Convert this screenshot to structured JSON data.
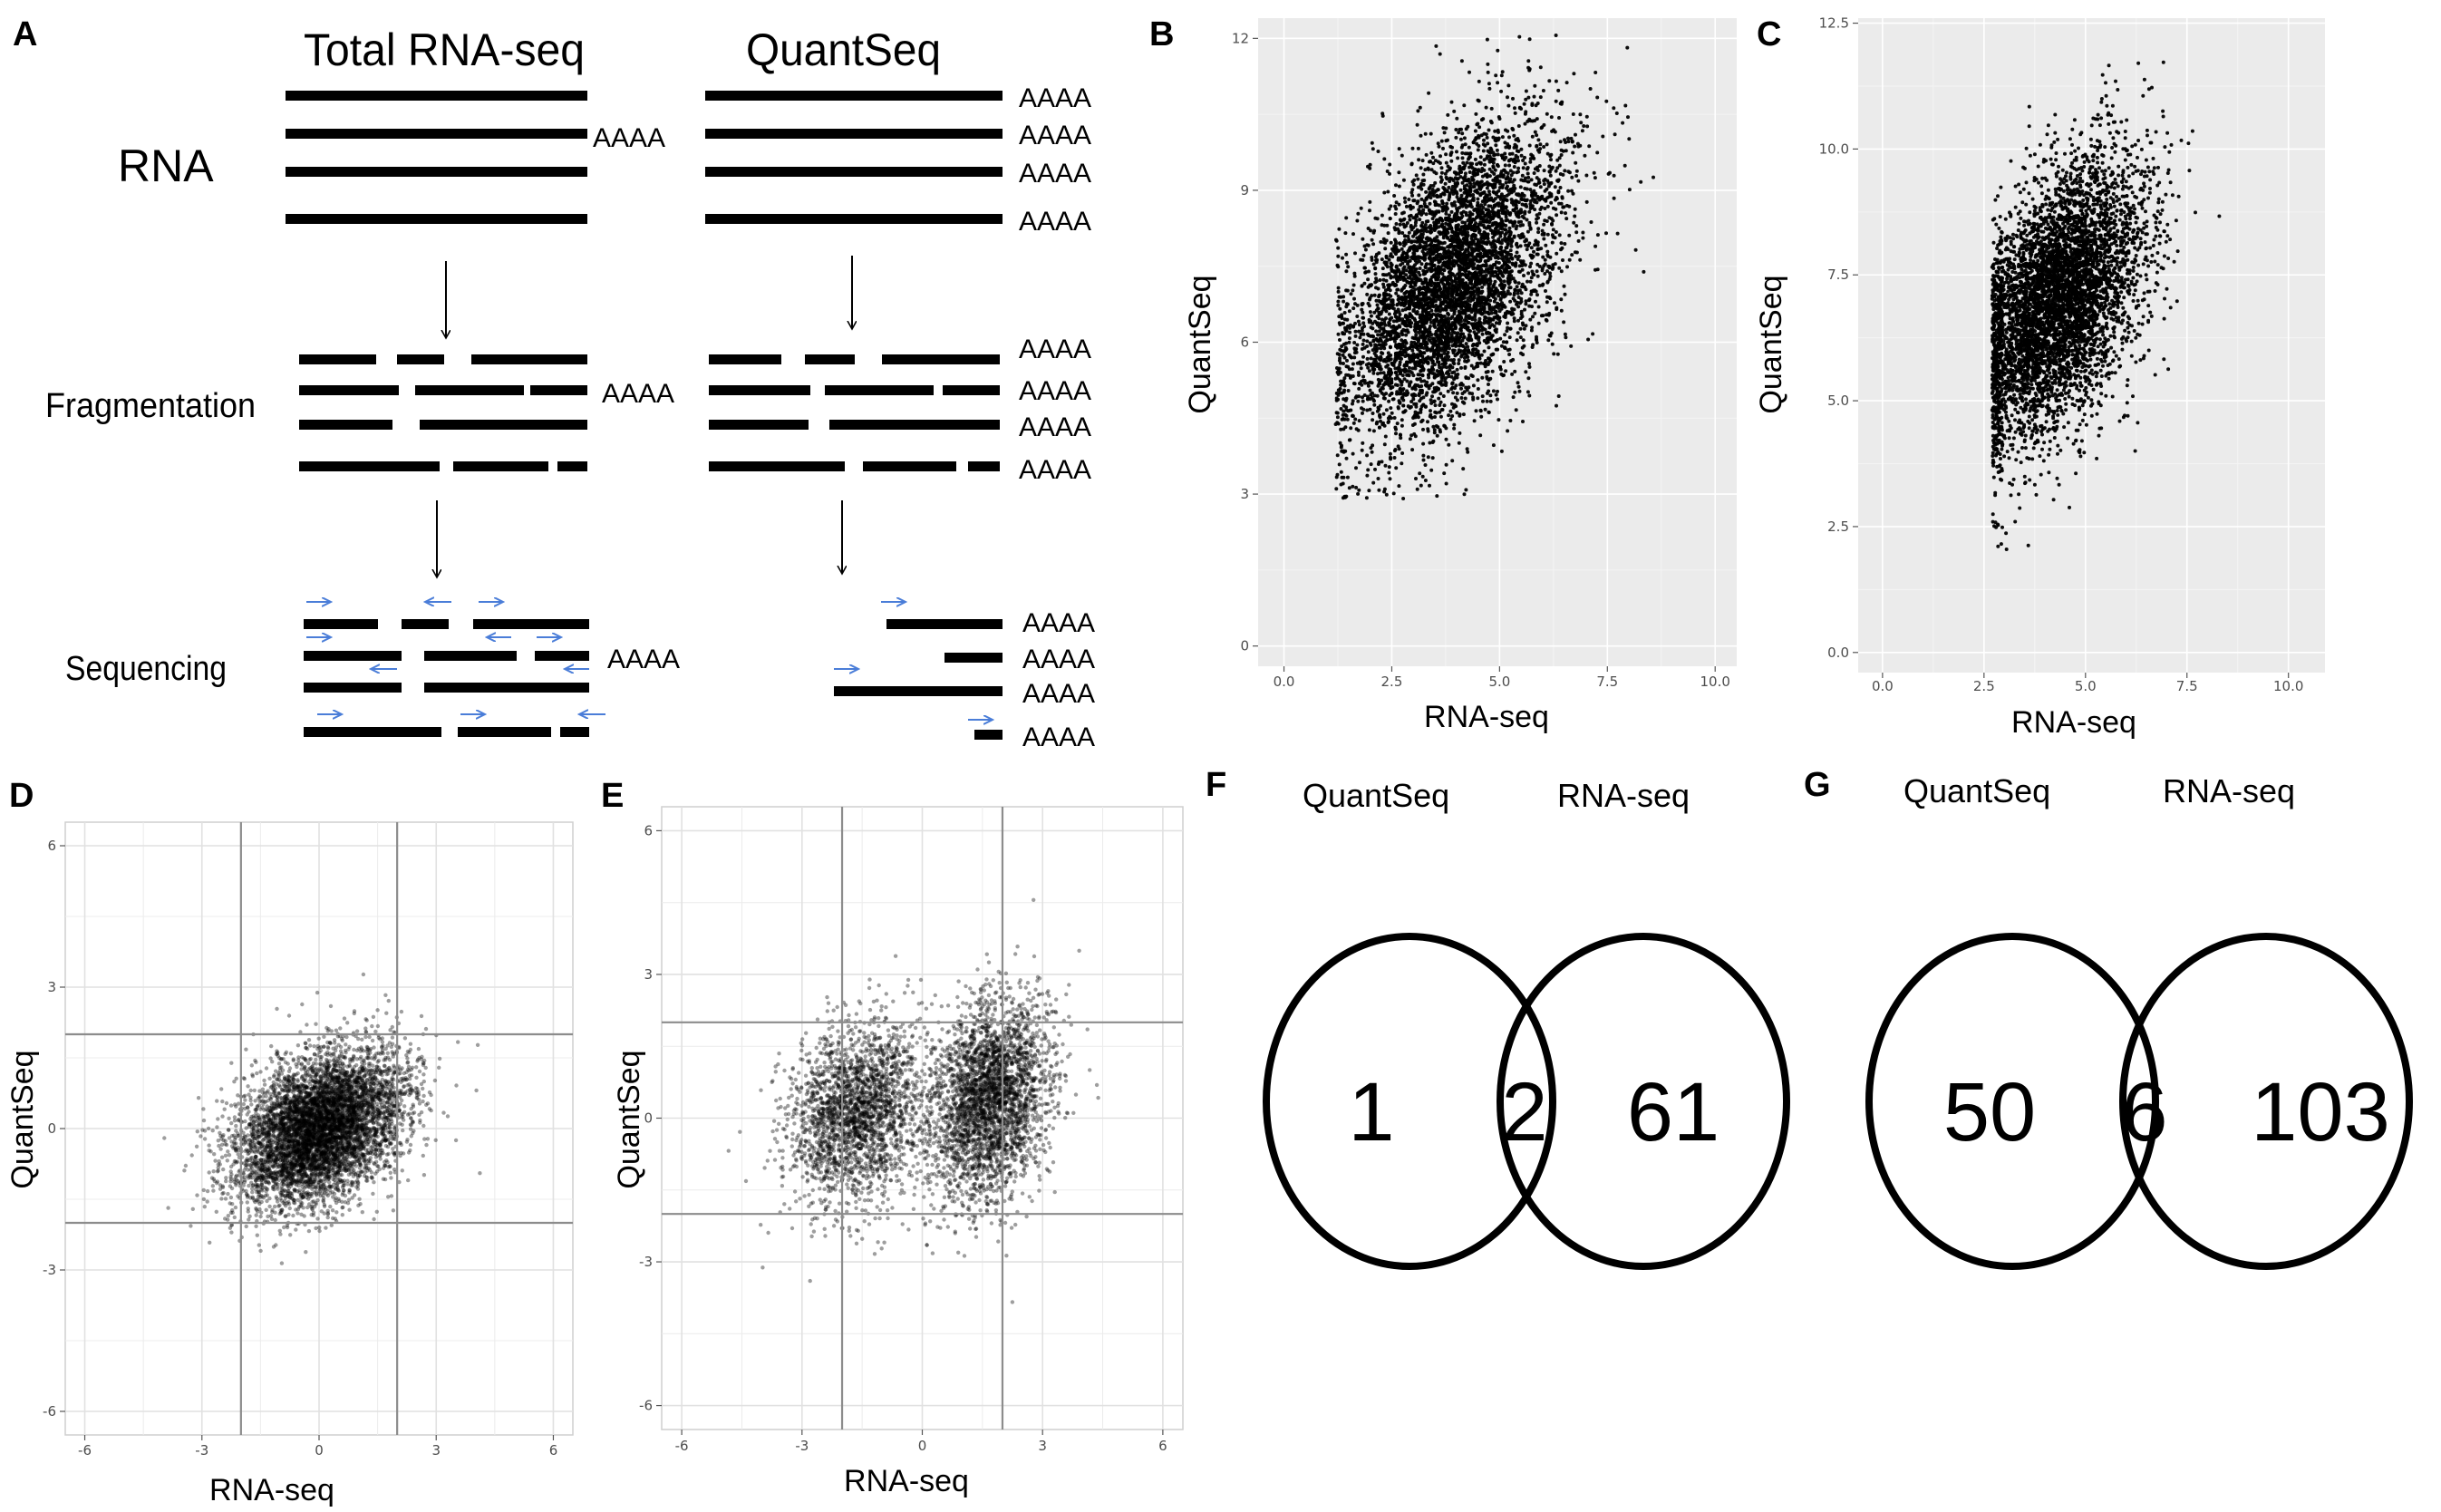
{
  "panels": {
    "A": {
      "label": "A",
      "col_total": "Total RNA-seq",
      "col_quant": "QuantSeq",
      "row_rna": "RNA",
      "row_frag": "Fragmentation",
      "row_seq": "Sequencing",
      "polyA": "AAAA"
    },
    "B": {
      "label": "B"
    },
    "C": {
      "label": "C"
    },
    "D": {
      "label": "D"
    },
    "E": {
      "label": "E"
    },
    "F": {
      "label": "F"
    },
    "G": {
      "label": "G"
    }
  },
  "chart_data": [
    {
      "id": "B",
      "type": "scatter",
      "xlabel": "RNA-seq",
      "ylabel": "QuantSeq",
      "xlim": [
        -0.6,
        10.5
      ],
      "ylim": [
        -0.4,
        12.4
      ],
      "xticks": [
        0,
        2.5,
        5,
        7.5,
        10
      ],
      "xtick_labels": [
        "0.0",
        "2.5",
        "5.0",
        "7.5",
        "10.0"
      ],
      "yticks": [
        0,
        3,
        6,
        9,
        12
      ],
      "ytick_labels": [
        "0",
        "3",
        "6",
        "9",
        "12"
      ],
      "grid": true,
      "background": "#ebebeb",
      "point_color": "#000000",
      "cloud": {
        "n_points": 5200,
        "x_mean": 3.9,
        "x_sd": 1.25,
        "y_mean": 7.2,
        "y_sd": 1.55,
        "correlation": 0.5,
        "x_min": 1.2,
        "y_min": 2.9
      }
    },
    {
      "id": "C",
      "type": "scatter",
      "xlabel": "RNA-seq",
      "ylabel": "QuantSeq",
      "xlim": [
        -0.6,
        10.9
      ],
      "ylim": [
        -0.4,
        12.6
      ],
      "xticks": [
        0,
        2.5,
        5,
        7.5,
        10
      ],
      "xtick_labels": [
        "0.0",
        "2.5",
        "5.0",
        "7.5",
        "10.0"
      ],
      "yticks": [
        0,
        2.5,
        5,
        7.5,
        10,
        12.5
      ],
      "ytick_labels": [
        "0.0",
        "2.5",
        "5.0",
        "7.5",
        "10.0",
        "12.5"
      ],
      "grid": true,
      "background": "#ebebeb",
      "point_color": "#000000",
      "cloud": {
        "n_points": 5200,
        "x_mean": 4.3,
        "x_sd": 1.05,
        "y_mean": 7.0,
        "y_sd": 1.35,
        "correlation": 0.45,
        "x_min": 2.7,
        "y_min": 1.9
      }
    },
    {
      "id": "D",
      "type": "scatter",
      "xlabel": "RNA-seq",
      "ylabel": "QuantSeq",
      "xlim": [
        -6.5,
        6.5
      ],
      "ylim": [
        -6.5,
        6.5
      ],
      "xticks": [
        -6,
        -3,
        0,
        3,
        6
      ],
      "xtick_labels": [
        "-6",
        "-3",
        "0",
        "3",
        "6"
      ],
      "yticks": [
        -6,
        -3,
        0,
        3,
        6
      ],
      "ytick_labels": [
        "-6",
        "-3",
        "0",
        "3",
        "6"
      ],
      "threshold_lines": {
        "x": [
          -2,
          2
        ],
        "y": [
          -2,
          2
        ]
      },
      "grid": true,
      "background": "#ffffff",
      "point_color": "#000000",
      "cloud": {
        "n_points": 6000,
        "x_mean": 0,
        "x_sd": 1.05,
        "y_mean": 0,
        "y_sd": 0.8,
        "correlation": 0.35
      }
    },
    {
      "id": "E",
      "type": "scatter",
      "xlabel": "RNA-seq",
      "ylabel": "QuantSeq",
      "xlim": [
        -6.5,
        6.5
      ],
      "ylim": [
        -6.5,
        6.5
      ],
      "xticks": [
        -6,
        -3,
        0,
        3,
        6
      ],
      "xtick_labels": [
        "-6",
        "-3",
        "0",
        "3",
        "6"
      ],
      "yticks": [
        -6,
        -3,
        0,
        3,
        6
      ],
      "ytick_labels": [
        "-6",
        "-3",
        "0",
        "3",
        "6"
      ],
      "threshold_lines": {
        "x": [
          -2,
          2
        ],
        "y": [
          -2,
          2
        ]
      },
      "grid": true,
      "background": "#ffffff",
      "point_color": "#000000",
      "clusters": [
        {
          "n_points": 2300,
          "x_mean": -1.6,
          "x_sd": 0.85,
          "y_mean": 0.1,
          "y_sd": 0.95,
          "correlation": 0.2
        },
        {
          "n_points": 3000,
          "x_mean": 1.7,
          "x_sd": 0.75,
          "y_mean": 0.4,
          "y_sd": 1.05,
          "correlation": 0.25
        }
      ]
    },
    {
      "id": "F",
      "type": "venn",
      "set_labels": [
        "QuantSeq",
        "RNA-seq"
      ],
      "only_left": "1",
      "both": "2",
      "only_right": "61"
    },
    {
      "id": "G",
      "type": "venn",
      "set_labels": [
        "QuantSeq",
        "RNA-seq"
      ],
      "only_left": "50",
      "both": "6",
      "only_right": "103"
    }
  ]
}
